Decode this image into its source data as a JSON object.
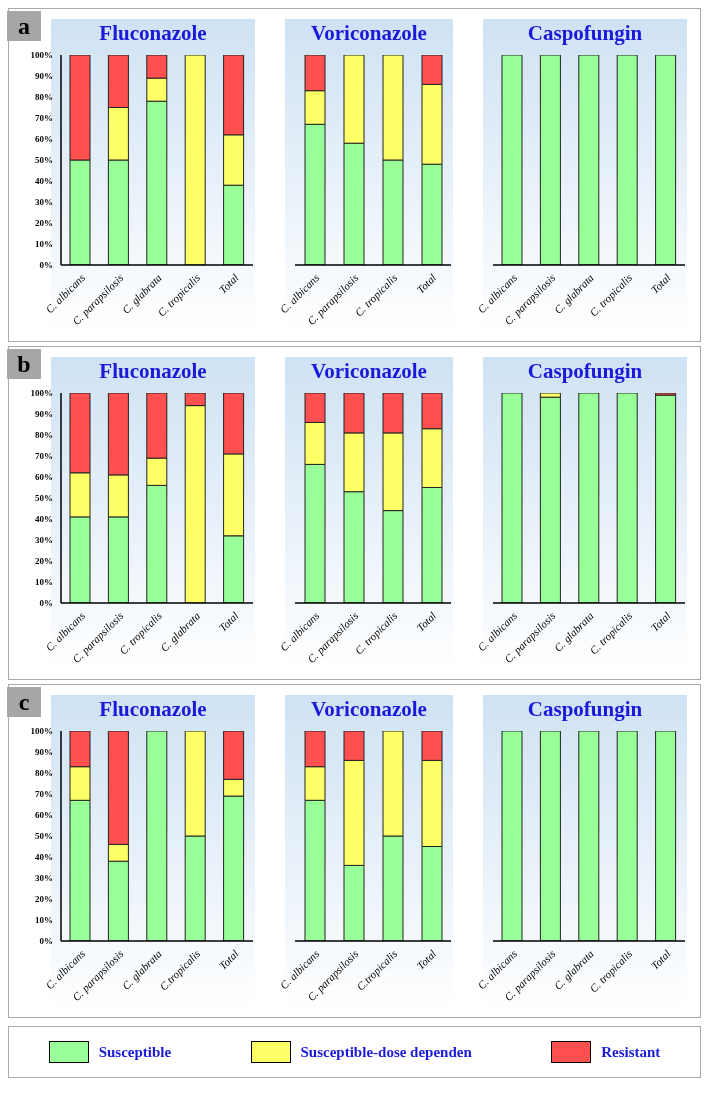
{
  "chart_data": [
    {
      "type": "bar",
      "stacked": true,
      "title": "Fluconazole",
      "annotations": [
        "a"
      ],
      "categories": [
        "C. albicans",
        "C. parapsilosis",
        "C. glabrata",
        "C. tropicalis",
        "Total"
      ],
      "ylim": [
        0,
        100
      ],
      "yticks": [
        {
          "value": 0,
          "label": "0%"
        },
        {
          "value": 10,
          "label": "10%"
        },
        {
          "value": 20,
          "label": "20%"
        },
        {
          "value": 30,
          "label": "30%"
        },
        {
          "value": 40,
          "label": "40%"
        },
        {
          "value": 50,
          "label": "50%"
        },
        {
          "value": 60,
          "label": "60%"
        },
        {
          "value": 70,
          "label": "70%"
        },
        {
          "value": 80,
          "label": "80%"
        },
        {
          "value": 90,
          "label": "90%"
        },
        {
          "value": 100,
          "label": "100%"
        }
      ],
      "series": [
        {
          "color": "#99ff99",
          "values": [
            50,
            50,
            78,
            0,
            38
          ]
        },
        {
          "color": "#ffff66",
          "values": [
            0,
            25,
            11,
            100,
            24
          ]
        },
        {
          "color": "#ff5050",
          "values": [
            50,
            25,
            11,
            0,
            38
          ]
        }
      ]
    },
    {
      "type": "bar",
      "stacked": true,
      "title": "Voriconazole",
      "tick_labels": "x",
      "categories": [
        "C. albicans",
        "C. parapsilosis",
        "C. tropicalis",
        "Total"
      ],
      "ylim": [
        0,
        100
      ],
      "series": [
        {
          "color": "#99ff99",
          "values": [
            67,
            58,
            50,
            48
          ]
        },
        {
          "color": "#ffff66",
          "values": [
            16,
            42,
            50,
            38
          ]
        },
        {
          "color": "#ff5050",
          "values": [
            17,
            0,
            0,
            14
          ]
        }
      ]
    },
    {
      "type": "bar",
      "stacked": true,
      "title": "Caspofungin",
      "tick_labels": "x",
      "categories": [
        "C. albicans",
        "C. parapsilosis",
        "C. glabrata",
        "C. tropicalis",
        "Total"
      ],
      "ylim": [
        0,
        100
      ],
      "series": [
        {
          "color": "#99ff99",
          "values": [
            100,
            100,
            100,
            100,
            100
          ]
        },
        {
          "color": "#ffff66",
          "values": [
            0,
            0,
            0,
            0,
            0
          ]
        },
        {
          "color": "#ff5050",
          "values": [
            0,
            0,
            0,
            0,
            0
          ]
        }
      ]
    },
    {
      "type": "bar",
      "stacked": true,
      "title": "Fluconazole",
      "annotations": [
        "b"
      ],
      "categories": [
        "C. albicans",
        "C. parapsilosis",
        "C. tropicalis",
        "C. glabrata",
        "Total"
      ],
      "ylim": [
        0,
        100
      ],
      "yticks": [
        {
          "value": 0,
          "label": "0%"
        },
        {
          "value": 10,
          "label": "10%"
        },
        {
          "value": 20,
          "label": "20%"
        },
        {
          "value": 30,
          "label": "30%"
        },
        {
          "value": 40,
          "label": "40%"
        },
        {
          "value": 50,
          "label": "50%"
        },
        {
          "value": 60,
          "label": "60%"
        },
        {
          "value": 70,
          "label": "70%"
        },
        {
          "value": 80,
          "label": "80%"
        },
        {
          "value": 90,
          "label": "90%"
        },
        {
          "value": 100,
          "label": "100%"
        }
      ],
      "series": [
        {
          "color": "#99ff99",
          "values": [
            41,
            41,
            56,
            0,
            32
          ]
        },
        {
          "color": "#ffff66",
          "values": [
            21,
            20,
            13,
            94,
            39
          ]
        },
        {
          "color": "#ff5050",
          "values": [
            38,
            39,
            31,
            6,
            29
          ]
        }
      ]
    },
    {
      "type": "bar",
      "stacked": true,
      "title": "Voriconazole",
      "tick_labels": "x",
      "categories": [
        "C. albicans",
        "C. parapsilosis",
        "C. tropicalis",
        "Total"
      ],
      "ylim": [
        0,
        100
      ],
      "series": [
        {
          "color": "#99ff99",
          "values": [
            66,
            53,
            44,
            55
          ]
        },
        {
          "color": "#ffff66",
          "values": [
            20,
            28,
            37,
            28
          ]
        },
        {
          "color": "#ff5050",
          "values": [
            14,
            19,
            19,
            17
          ]
        }
      ]
    },
    {
      "type": "bar",
      "stacked": true,
      "title": "Caspofungin",
      "tick_labels": "x",
      "categories": [
        "C. albicans",
        "C. parapsilosis",
        "C. glabrata",
        "C. tropicalis",
        "Total"
      ],
      "ylim": [
        0,
        100
      ],
      "series": [
        {
          "color": "#99ff99",
          "values": [
            100,
            98,
            100,
            100,
            99
          ]
        },
        {
          "color": "#ffff66",
          "values": [
            0,
            2,
            0,
            0,
            0
          ]
        },
        {
          "color": "#ff5050",
          "values": [
            0,
            0,
            0,
            0,
            1
          ]
        }
      ]
    },
    {
      "type": "bar",
      "stacked": true,
      "title": "Fluconazole",
      "annotations": [
        "c"
      ],
      "categories": [
        "C. albicans",
        "C. parapsilosis",
        "C. glabrata",
        "C.tropicalis",
        "Total"
      ],
      "ylim": [
        0,
        100
      ],
      "yticks": [
        {
          "value": 0,
          "label": "0%"
        },
        {
          "value": 10,
          "label": "10%"
        },
        {
          "value": 20,
          "label": "20%"
        },
        {
          "value": 30,
          "label": "30%"
        },
        {
          "value": 40,
          "label": "40%"
        },
        {
          "value": 50,
          "label": "50%"
        },
        {
          "value": 60,
          "label": "60%"
        },
        {
          "value": 70,
          "label": "70%"
        },
        {
          "value": 80,
          "label": "80%"
        },
        {
          "value": 90,
          "label": "90%"
        },
        {
          "value": 100,
          "label": "100%"
        }
      ],
      "series": [
        {
          "color": "#99ff99",
          "values": [
            67,
            38,
            100,
            50,
            69
          ]
        },
        {
          "color": "#ffff66",
          "values": [
            16,
            8,
            0,
            50,
            8
          ]
        },
        {
          "color": "#ff5050",
          "values": [
            17,
            54,
            0,
            0,
            23
          ]
        }
      ]
    },
    {
      "type": "bar",
      "stacked": true,
      "title": "Voriconazole",
      "tick_labels": "x",
      "categories": [
        "C. albicans",
        "C. parapsilosis",
        "C.tropicalis",
        "Total"
      ],
      "ylim": [
        0,
        100
      ],
      "series": [
        {
          "color": "#99ff99",
          "values": [
            67,
            36,
            50,
            45
          ]
        },
        {
          "color": "#ffff66",
          "values": [
            16,
            50,
            50,
            41
          ]
        },
        {
          "color": "#ff5050",
          "values": [
            17,
            14,
            0,
            14
          ]
        }
      ]
    },
    {
      "type": "bar",
      "stacked": true,
      "title": "Caspofungin",
      "tick_labels": "x",
      "legend": "bottom",
      "categories": [
        "C. albicans",
        "C. parapsilosis",
        "C. glabrata",
        "C. tropicalis",
        "Total"
      ],
      "ylim": [
        0,
        100
      ],
      "series": [
        {
          "name": "Susceptible",
          "color": "#99ff99",
          "values": [
            100,
            100,
            100,
            100,
            100
          ]
        },
        {
          "name": "Susceptible-dose dependen",
          "color": "#ffff66",
          "values": [
            0,
            0,
            0,
            0,
            0
          ]
        },
        {
          "name": "Resistant",
          "color": "#ff5050",
          "values": [
            0,
            0,
            0,
            0,
            0
          ]
        }
      ]
    }
  ]
}
